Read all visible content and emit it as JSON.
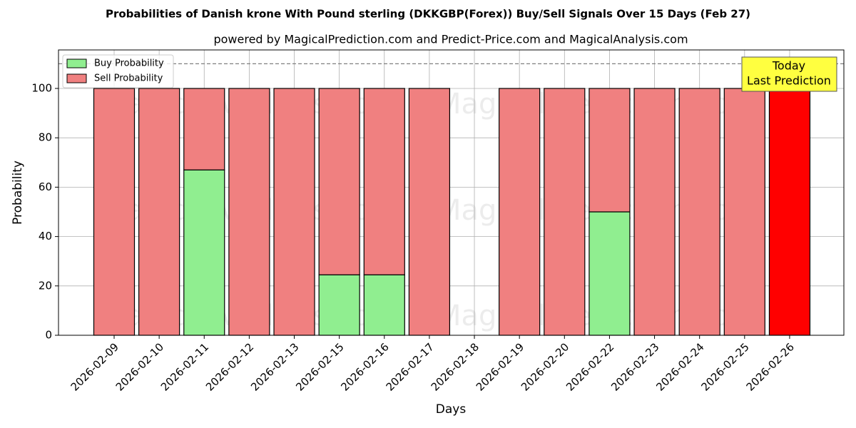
{
  "chart_data": {
    "type": "stacked_bar",
    "title": "Probabilities of Danish krone With Pound sterling (DKKGBP(Forex)) Buy/Sell Signals Over 15 Days (Feb 27)",
    "subtitle": "powered by MagicalPrediction.com and Predict-Price.com and MagicalAnalysis.com",
    "x_label": "Days",
    "y_label": "Probability",
    "categories": [
      "2026-02-09",
      "2026-02-10",
      "2026-02-11",
      "2026-02-12",
      "2026-02-13",
      "2026-02-15",
      "2026-02-16",
      "2026-02-17",
      "2026-02-18",
      "2026-02-19",
      "2026-02-20",
      "2026-02-22",
      "2026-02-23",
      "2026-02-24",
      "2026-02-25",
      "2026-02-26"
    ],
    "series": [
      {
        "name": "Buy Probability",
        "color": "#90ee90",
        "values": [
          0,
          0,
          67,
          0,
          0,
          24.5,
          24.5,
          0,
          null,
          0,
          0,
          50,
          0,
          0,
          0,
          0
        ]
      },
      {
        "name": "Sell Probability",
        "color": "#f08080",
        "colors": [
          "#f08080",
          "#f08080",
          "#f08080",
          "#f08080",
          "#f08080",
          "#f08080",
          "#f08080",
          "#f08080",
          "#f08080",
          "#f08080",
          "#f08080",
          "#f08080",
          "#f08080",
          "#f08080",
          "#f08080",
          "#ff0000"
        ],
        "values": [
          100,
          100,
          33,
          100,
          100,
          75.5,
          75.5,
          100,
          null,
          100,
          100,
          50,
          100,
          100,
          100,
          100
        ]
      }
    ],
    "ylim": [
      0,
      115.6
    ],
    "yticks": [
      0,
      20,
      40,
      60,
      80,
      100
    ],
    "grid": true,
    "reference_line": 110,
    "legend": "upper left",
    "annotation": [
      "Today",
      "Last Prediction"
    ],
    "watermarks": [
      "MagicalAnalysis.com",
      "MagicalPrediction.com"
    ]
  }
}
